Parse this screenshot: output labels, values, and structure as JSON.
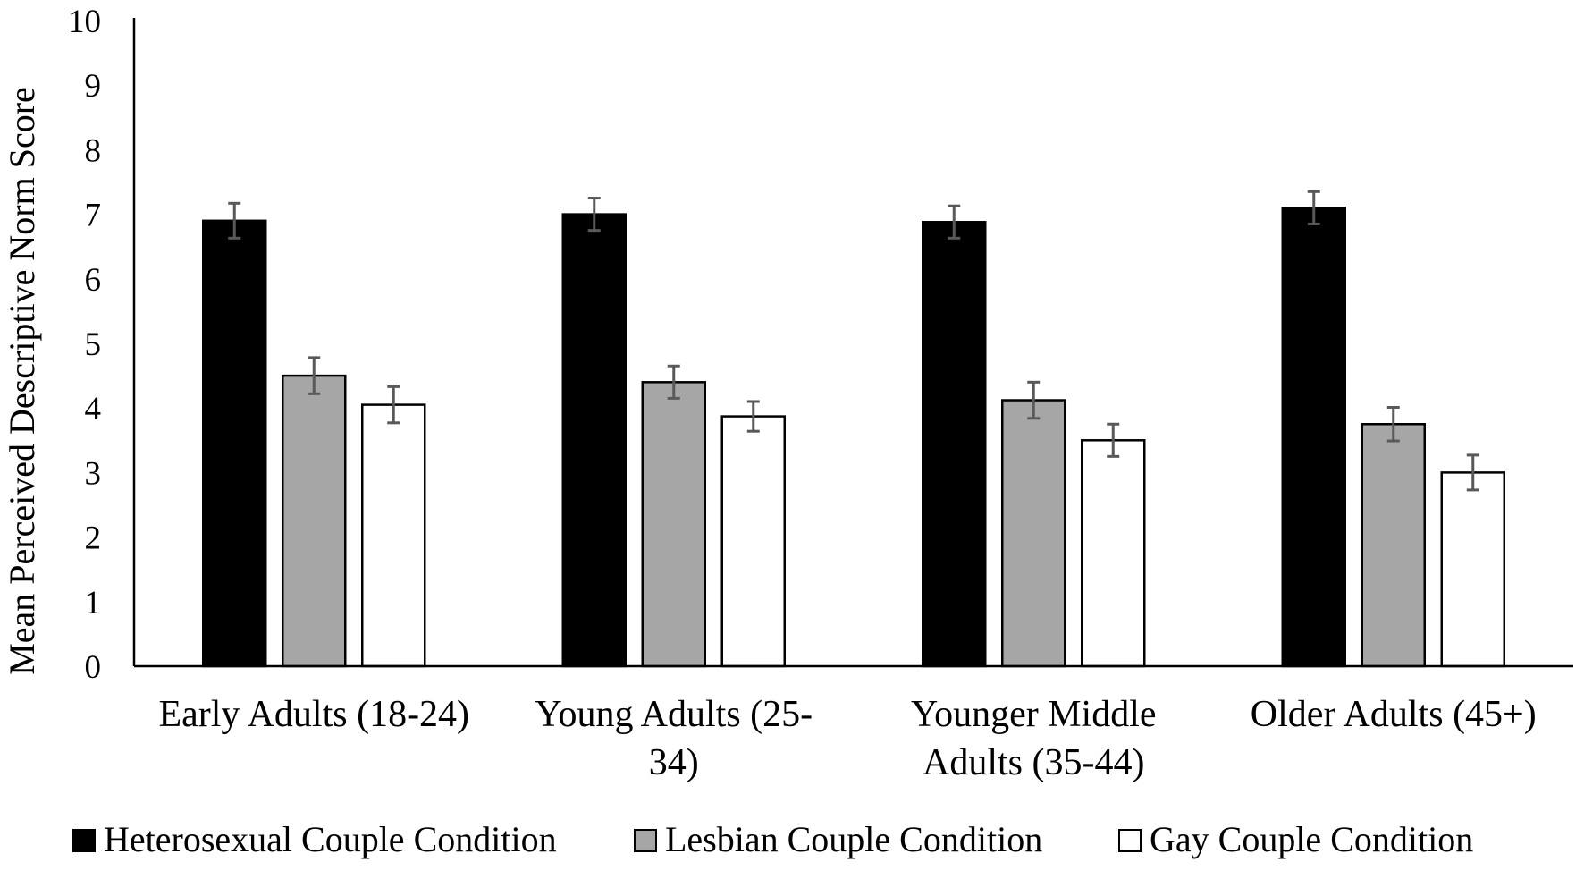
{
  "chart_data": {
    "type": "bar",
    "title": "",
    "xlabel": "",
    "ylabel": "Mean Perceived Descriptive Norm Score",
    "ylim": [
      0,
      10
    ],
    "yticks": [
      0,
      1,
      2,
      3,
      4,
      5,
      6,
      7,
      8,
      9,
      10
    ],
    "grid": false,
    "legend_position": "bottom",
    "categories": [
      [
        "Early Adults (18-24)"
      ],
      [
        "Young Adults (25-",
        "34)"
      ],
      [
        "Younger Middle",
        "Adults (35-44)"
      ],
      [
        "Older Adults (45+)"
      ]
    ],
    "series": [
      {
        "name": "Heterosexual Couple Condition",
        "color": "#000000",
        "values": [
          6.9,
          7.0,
          6.88,
          7.1
        ],
        "errors": [
          0.27,
          0.25,
          0.25,
          0.25
        ]
      },
      {
        "name": "Lesbian Couple Condition",
        "color": "#a6a6a6",
        "values": [
          4.5,
          4.4,
          4.12,
          3.75
        ],
        "errors": [
          0.28,
          0.25,
          0.28,
          0.26
        ]
      },
      {
        "name": "Gay Couple Condition",
        "color": "#ffffff",
        "values": [
          4.05,
          3.87,
          3.5,
          3.0
        ],
        "errors": [
          0.28,
          0.23,
          0.25,
          0.27
        ]
      }
    ]
  }
}
